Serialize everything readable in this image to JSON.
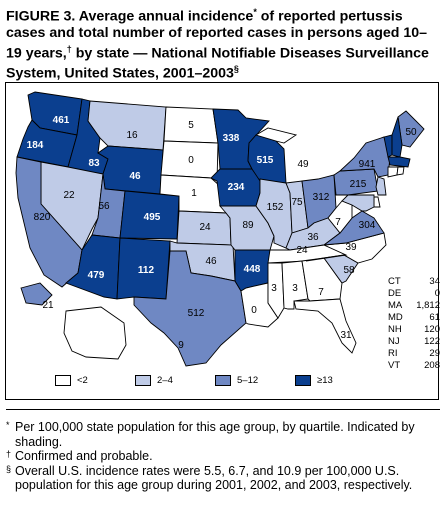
{
  "title": "FIGURE 3. Average annual incidence* of reported pertussis cases and total number of reported cases in persons aged 10–19 years,† by state — National Notifiable Diseases Surveillance System, United States, 2001–2003§",
  "colors": {
    "q1": "#ffffff",
    "q2": "#bfcbe7",
    "q3": "#6f88c3",
    "q4": "#0b3f8f",
    "ocean": "#ffffff"
  },
  "map_data": {
    "type": "choropleth",
    "measure": "total reported cases",
    "states": [
      {
        "id": "WA",
        "q": "q4",
        "cases": "461"
      },
      {
        "id": "OR",
        "q": "q4",
        "cases": "184"
      },
      {
        "id": "ID",
        "q": "q4",
        "cases": "83"
      },
      {
        "id": "MT",
        "q": "q2",
        "cases": "16"
      },
      {
        "id": "WY",
        "q": "q4",
        "cases": "46"
      },
      {
        "id": "NV",
        "q": "q2",
        "cases": "22"
      },
      {
        "id": "UT",
        "q": "q3",
        "cases": "56"
      },
      {
        "id": "CA",
        "q": "q3",
        "cases": "820"
      },
      {
        "id": "AZ",
        "q": "q4",
        "cases": "479"
      },
      {
        "id": "CO",
        "q": "q4",
        "cases": "495"
      },
      {
        "id": "NM",
        "q": "q4",
        "cases": "112"
      },
      {
        "id": "ND",
        "q": "q1",
        "cases": "5"
      },
      {
        "id": "SD",
        "q": "q1",
        "cases": "0"
      },
      {
        "id": "NE",
        "q": "q1",
        "cases": "1"
      },
      {
        "id": "KS",
        "q": "q2",
        "cases": "24"
      },
      {
        "id": "OK",
        "q": "q2",
        "cases": "46"
      },
      {
        "id": "TX",
        "q": "q3",
        "cases": "512"
      },
      {
        "id": "MN",
        "q": "q4",
        "cases": "338"
      },
      {
        "id": "IA",
        "q": "q4",
        "cases": "234"
      },
      {
        "id": "MO",
        "q": "q2",
        "cases": "89"
      },
      {
        "id": "AR",
        "q": "q4",
        "cases": "448"
      },
      {
        "id": "LA",
        "q": "q1",
        "cases": "0"
      },
      {
        "id": "WI",
        "q": "q4",
        "cases": "515"
      },
      {
        "id": "IL",
        "q": "q2",
        "cases": "152"
      },
      {
        "id": "MI",
        "q": "q1",
        "cases": "49"
      },
      {
        "id": "IN",
        "q": "q2",
        "cases": "75"
      },
      {
        "id": "OH",
        "q": "q3",
        "cases": "312"
      },
      {
        "id": "KY",
        "q": "q2",
        "cases": "36"
      },
      {
        "id": "TN",
        "q": "q1",
        "cases": "24"
      },
      {
        "id": "MS",
        "q": "q1",
        "cases": "3"
      },
      {
        "id": "AL",
        "q": "q1",
        "cases": "3"
      },
      {
        "id": "GA",
        "q": "q1",
        "cases": "7"
      },
      {
        "id": "FL",
        "q": "q1",
        "cases": "31"
      },
      {
        "id": "SC",
        "q": "q2",
        "cases": "58"
      },
      {
        "id": "NC",
        "q": "q1",
        "cases": "39"
      },
      {
        "id": "VA",
        "q": "q3",
        "cases": "304"
      },
      {
        "id": "WV",
        "q": "q1",
        "cases": "7"
      },
      {
        "id": "PA",
        "q": "q3",
        "cases": "215"
      },
      {
        "id": "NY",
        "q": "q3",
        "cases": "941"
      },
      {
        "id": "ME",
        "q": "q3",
        "cases": "50"
      },
      {
        "id": "VT",
        "q": "q4",
        "cases": ""
      },
      {
        "id": "NH",
        "q": "q4",
        "cases": ""
      },
      {
        "id": "MA",
        "q": "q4",
        "cases": ""
      },
      {
        "id": "CT",
        "q": "q1",
        "cases": ""
      },
      {
        "id": "RI",
        "q": "q1",
        "cases": ""
      },
      {
        "id": "NJ",
        "q": "q2",
        "cases": ""
      },
      {
        "id": "DE",
        "q": "q1",
        "cases": ""
      },
      {
        "id": "MD",
        "q": "q2",
        "cases": ""
      },
      {
        "id": "AK",
        "q": "q1",
        "cases": "9"
      },
      {
        "id": "HI",
        "q": "q3",
        "cases": "21"
      }
    ],
    "small_states": [
      {
        "abbr": "CT",
        "cases": "34"
      },
      {
        "abbr": "DE",
        "cases": "0"
      },
      {
        "abbr": "MA",
        "cases": "1,812"
      },
      {
        "abbr": "MD",
        "cases": "61"
      },
      {
        "abbr": "NH",
        "cases": "120"
      },
      {
        "abbr": "NJ",
        "cases": "122"
      },
      {
        "abbr": "RI",
        "cases": "29"
      },
      {
        "abbr": "VT",
        "cases": "208"
      }
    ]
  },
  "legend": [
    {
      "label": "<2",
      "q": "q1"
    },
    {
      "label": "2–4",
      "q": "q2"
    },
    {
      "label": "5–12",
      "q": "q3"
    },
    {
      "label": "≥13",
      "q": "q4"
    }
  ],
  "footnotes": [
    {
      "mark": "*",
      "text": "Per 100,000 state population for this age group, by quartile. Indicated by shading."
    },
    {
      "mark": "†",
      "text": "Confirmed and probable."
    },
    {
      "mark": "§",
      "text": "Overall U.S. incidence rates were 5.5, 6.7, and 10.9 per 100,000 U.S. population for this age group during 2001, 2002, and 2003, respectively."
    }
  ]
}
